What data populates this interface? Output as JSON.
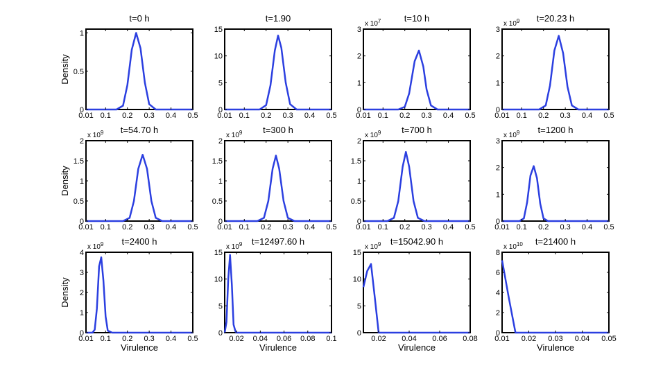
{
  "figure": {
    "ylabel": "Density",
    "xlabel": "Virulence",
    "line_color": "#2b3fe0"
  },
  "chart_data": [
    {
      "type": "line",
      "title": "t=0 h",
      "exponent": "",
      "ylim": [
        0,
        1.05
      ],
      "yticks": [
        0,
        0.5,
        1
      ],
      "ytick_labels": [
        "0",
        "0.5",
        "1"
      ],
      "xlim": [
        0.01,
        0.5
      ],
      "xticks": [
        0.01,
        0.1,
        0.2,
        0.3,
        0.4,
        0.5
      ],
      "xtick_labels": [
        "0.01",
        "0.1",
        "0.2",
        "0.3",
        "0.4",
        "0.5"
      ],
      "ylabel": "Density",
      "xlabel": "",
      "series": [
        {
          "x": [
            0.01,
            0.15,
            0.18,
            0.2,
            0.22,
            0.24,
            0.26,
            0.28,
            0.3,
            0.33,
            0.5
          ],
          "y": [
            0,
            0,
            0.05,
            0.32,
            0.78,
            1.0,
            0.8,
            0.35,
            0.07,
            0,
            0
          ]
        }
      ]
    },
    {
      "type": "line",
      "title": "t=1.90",
      "exponent": "",
      "ylim": [
        0,
        15
      ],
      "yticks": [
        0,
        5,
        10,
        15
      ],
      "ytick_labels": [
        "0",
        "5",
        "10",
        "15"
      ],
      "xlim": [
        0.01,
        0.5
      ],
      "xticks": [
        0.01,
        0.1,
        0.2,
        0.3,
        0.4,
        0.5
      ],
      "xtick_labels": [
        "0.01",
        "0.1",
        "0.2",
        "0.3",
        "0.4",
        "0.5"
      ],
      "ylabel": "",
      "xlabel": "",
      "series": [
        {
          "x": [
            0.01,
            0.17,
            0.2,
            0.22,
            0.24,
            0.255,
            0.27,
            0.29,
            0.31,
            0.34,
            0.5
          ],
          "y": [
            0,
            0,
            0.8,
            4.5,
            11.0,
            13.8,
            11.5,
            5.0,
            1.0,
            0,
            0
          ]
        }
      ]
    },
    {
      "type": "line",
      "title": "t=10 h",
      "exponent": "x 10^7",
      "ylim": [
        0,
        3
      ],
      "yticks": [
        0,
        1,
        2,
        3
      ],
      "ytick_labels": [
        "0",
        "1",
        "2",
        "3"
      ],
      "xlim": [
        0.01,
        0.5
      ],
      "xticks": [
        0.01,
        0.1,
        0.2,
        0.3,
        0.4,
        0.5
      ],
      "xtick_labels": [
        "0.01",
        "0.1",
        "0.2",
        "0.3",
        "0.4",
        "0.5"
      ],
      "ylabel": "",
      "xlabel": "",
      "series": [
        {
          "x": [
            0.01,
            0.17,
            0.2,
            0.22,
            0.245,
            0.265,
            0.285,
            0.3,
            0.32,
            0.35,
            0.5
          ],
          "y": [
            0,
            0,
            0.1,
            0.6,
            1.8,
            2.2,
            1.6,
            0.75,
            0.15,
            0,
            0
          ]
        }
      ]
    },
    {
      "type": "line",
      "title": "t=20.23 h",
      "exponent": "x 10^9",
      "ylim": [
        0,
        3
      ],
      "yticks": [
        0,
        1,
        2,
        3
      ],
      "ytick_labels": [
        "0",
        "1",
        "2",
        "3"
      ],
      "xlim": [
        0.01,
        0.5
      ],
      "xticks": [
        0.01,
        0.1,
        0.2,
        0.3,
        0.4,
        0.5
      ],
      "xtick_labels": [
        "0.01",
        "0.1",
        "0.2",
        "0.3",
        "0.4",
        "0.5"
      ],
      "ylabel": "",
      "xlabel": "",
      "series": [
        {
          "x": [
            0.01,
            0.18,
            0.21,
            0.23,
            0.25,
            0.27,
            0.29,
            0.31,
            0.33,
            0.36,
            0.5
          ],
          "y": [
            0,
            0,
            0.15,
            0.9,
            2.2,
            2.75,
            2.1,
            0.85,
            0.15,
            0,
            0
          ]
        }
      ]
    },
    {
      "type": "line",
      "title": "t=54.70 h",
      "exponent": "x 10^9",
      "ylim": [
        0,
        2
      ],
      "yticks": [
        0,
        0.5,
        1,
        1.5,
        2
      ],
      "ytick_labels": [
        "0",
        "0.5",
        "1",
        "1.5",
        "2"
      ],
      "xlim": [
        0.01,
        0.5
      ],
      "xticks": [
        0.01,
        0.1,
        0.2,
        0.3,
        0.4,
        0.5
      ],
      "xtick_labels": [
        "0.01",
        "0.1",
        "0.2",
        "0.3",
        "0.4",
        "0.5"
      ],
      "ylabel": "Density",
      "xlabel": "",
      "series": [
        {
          "x": [
            0.01,
            0.18,
            0.21,
            0.23,
            0.25,
            0.27,
            0.29,
            0.31,
            0.33,
            0.36,
            0.5
          ],
          "y": [
            0,
            0,
            0.08,
            0.5,
            1.3,
            1.65,
            1.3,
            0.5,
            0.08,
            0,
            0
          ]
        }
      ]
    },
    {
      "type": "line",
      "title": "t=300 h",
      "exponent": "x 10^9",
      "ylim": [
        0,
        2
      ],
      "yticks": [
        0,
        0.5,
        1,
        1.5,
        2
      ],
      "ytick_labels": [
        "0",
        "0.5",
        "1",
        "1.5",
        "2"
      ],
      "xlim": [
        0.01,
        0.5
      ],
      "xticks": [
        0.01,
        0.1,
        0.2,
        0.3,
        0.4,
        0.5
      ],
      "xtick_labels": [
        "0.01",
        "0.1",
        "0.2",
        "0.3",
        "0.4",
        "0.5"
      ],
      "ylabel": "",
      "xlabel": "",
      "series": [
        {
          "x": [
            0.01,
            0.16,
            0.19,
            0.21,
            0.23,
            0.245,
            0.26,
            0.28,
            0.3,
            0.33,
            0.5
          ],
          "y": [
            0,
            0,
            0.08,
            0.5,
            1.3,
            1.63,
            1.3,
            0.5,
            0.08,
            0,
            0
          ]
        }
      ]
    },
    {
      "type": "line",
      "title": "t=700 h",
      "exponent": "x 10^9",
      "ylim": [
        0,
        2
      ],
      "yticks": [
        0,
        0.5,
        1,
        1.5,
        2
      ],
      "ytick_labels": [
        "0",
        "0.5",
        "1",
        "1.5",
        "2"
      ],
      "xlim": [
        0.01,
        0.5
      ],
      "xticks": [
        0.01,
        0.1,
        0.2,
        0.3,
        0.4,
        0.5
      ],
      "xtick_labels": [
        "0.01",
        "0.1",
        "0.2",
        "0.3",
        "0.4",
        "0.5"
      ],
      "ylabel": "",
      "xlabel": "",
      "series": [
        {
          "x": [
            0.01,
            0.12,
            0.15,
            0.17,
            0.19,
            0.205,
            0.22,
            0.24,
            0.26,
            0.29,
            0.5
          ],
          "y": [
            0,
            0,
            0.08,
            0.5,
            1.35,
            1.72,
            1.35,
            0.5,
            0.08,
            0,
            0
          ]
        }
      ]
    },
    {
      "type": "line",
      "title": "t=1200 h",
      "exponent": "x 10^9",
      "ylim": [
        0,
        3
      ],
      "yticks": [
        0,
        1,
        2,
        3
      ],
      "ytick_labels": [
        "0",
        "1",
        "2",
        "3"
      ],
      "xlim": [
        0.01,
        0.5
      ],
      "xticks": [
        0.01,
        0.1,
        0.2,
        0.3,
        0.4,
        0.5
      ],
      "xtick_labels": [
        "0.01",
        "0.1",
        "0.2",
        "0.3",
        "0.4",
        "0.5"
      ],
      "ylabel": "",
      "xlabel": "",
      "series": [
        {
          "x": [
            0.01,
            0.09,
            0.11,
            0.125,
            0.14,
            0.155,
            0.17,
            0.185,
            0.2,
            0.22,
            0.5
          ],
          "y": [
            0,
            0,
            0.1,
            0.7,
            1.7,
            2.05,
            1.6,
            0.65,
            0.1,
            0,
            0
          ]
        }
      ]
    },
    {
      "type": "line",
      "title": "t=2400 h",
      "exponent": "x 10^9",
      "ylim": [
        0,
        4
      ],
      "yticks": [
        0,
        1,
        2,
        3,
        4
      ],
      "ytick_labels": [
        "0",
        "1",
        "2",
        "3",
        "4"
      ],
      "xlim": [
        0.01,
        0.5
      ],
      "xticks": [
        0.01,
        0.1,
        0.2,
        0.3,
        0.4,
        0.5
      ],
      "xtick_labels": [
        "0.01",
        "0.1",
        "0.2",
        "0.3",
        "0.4",
        "0.5"
      ],
      "ylabel": "Density",
      "xlabel": "Virulence",
      "series": [
        {
          "x": [
            0.01,
            0.04,
            0.05,
            0.06,
            0.07,
            0.08,
            0.09,
            0.1,
            0.11,
            0.13,
            0.5
          ],
          "y": [
            0,
            0,
            0.15,
            1.2,
            3.3,
            3.75,
            2.6,
            0.8,
            0.1,
            0,
            0
          ]
        }
      ]
    },
    {
      "type": "line",
      "title": "t=12497.60 h",
      "exponent": "x 10^9",
      "ylim": [
        0,
        15
      ],
      "yticks": [
        0,
        5,
        10,
        15
      ],
      "ytick_labels": [
        "0",
        "5",
        "10",
        "15"
      ],
      "xlim": [
        0.01,
        0.1
      ],
      "xticks": [
        0.02,
        0.04,
        0.06,
        0.08,
        0.1
      ],
      "xtick_labels": [
        "0.02",
        "0.04",
        "0.06",
        "0.08",
        "0.1"
      ],
      "ylabel": "",
      "xlabel": "Virulence",
      "series": [
        {
          "x": [
            0.01,
            0.0115,
            0.013,
            0.0145,
            0.016,
            0.0175,
            0.019,
            0.02,
            0.1
          ],
          "y": [
            0,
            2,
            10,
            14.5,
            9,
            1.5,
            0.3,
            0,
            0
          ]
        }
      ]
    },
    {
      "type": "line",
      "title": "t=15042.90 h",
      "exponent": "x 10^9",
      "ylim": [
        0,
        15
      ],
      "yticks": [
        0,
        5,
        10,
        15
      ],
      "ytick_labels": [
        "0",
        "5",
        "10",
        "15"
      ],
      "xlim": [
        0.01,
        0.08
      ],
      "xticks": [
        0.02,
        0.04,
        0.06,
        0.08
      ],
      "xtick_labels": [
        "0.02",
        "0.04",
        "0.06",
        "0.08"
      ],
      "ylabel": "",
      "xlabel": "Virulence",
      "series": [
        {
          "x": [
            0.01,
            0.0125,
            0.015,
            0.0175,
            0.02,
            0.08
          ],
          "y": [
            8.5,
            11.5,
            12.8,
            6.5,
            0,
            0
          ]
        }
      ]
    },
    {
      "type": "line",
      "title": "t=21400 h",
      "exponent": "x 10^10",
      "ylim": [
        0,
        8
      ],
      "yticks": [
        0,
        2,
        4,
        6,
        8
      ],
      "ytick_labels": [
        "0",
        "2",
        "4",
        "6",
        "8"
      ],
      "xlim": [
        0.01,
        0.05
      ],
      "xticks": [
        0.01,
        0.02,
        0.03,
        0.04,
        0.05
      ],
      "xtick_labels": [
        "0.01",
        "0.02",
        "0.03",
        "0.04",
        "0.05"
      ],
      "ylabel": "",
      "xlabel": "Virulence",
      "series": [
        {
          "x": [
            0.01,
            0.0125,
            0.015,
            0.05
          ],
          "y": [
            7.2,
            3.5,
            0,
            0
          ]
        }
      ]
    }
  ]
}
